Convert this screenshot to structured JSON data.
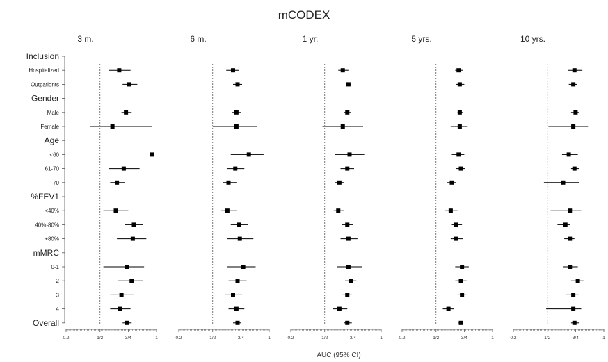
{
  "chart_data": {
    "type": "forest",
    "title": "mCODEX",
    "xlabel": "AUC (95% CI)",
    "xlim": [
      0.2,
      1.0
    ],
    "x_ticks": [
      "0.2",
      "1/2",
      "3/4",
      "1"
    ],
    "reference_line": 0.5,
    "rows": [
      {
        "label": "Inclusion",
        "kind": "group"
      },
      {
        "label": "Hospitalized",
        "kind": "sub"
      },
      {
        "label": "Outpatients",
        "kind": "sub"
      },
      {
        "label": "Gender",
        "kind": "group"
      },
      {
        "label": "Male",
        "kind": "sub"
      },
      {
        "label": "Female",
        "kind": "sub"
      },
      {
        "label": "Age",
        "kind": "group"
      },
      {
        "label": "<60",
        "kind": "sub"
      },
      {
        "label": "61-70",
        "kind": "sub"
      },
      {
        "label": "+70",
        "kind": "sub"
      },
      {
        "label": "%FEV1",
        "kind": "group"
      },
      {
        "label": "<40%",
        "kind": "sub"
      },
      {
        "label": "40%-80%",
        "kind": "sub"
      },
      {
        "label": "+80%",
        "kind": "sub"
      },
      {
        "label": "mMRC",
        "kind": "group"
      },
      {
        "label": "0-1",
        "kind": "sub"
      },
      {
        "label": "2",
        "kind": "sub"
      },
      {
        "label": "3",
        "kind": "sub"
      },
      {
        "label": "4",
        "kind": "sub"
      },
      {
        "label": "Overall",
        "kind": "group"
      }
    ],
    "panels": [
      {
        "name": "3 m.",
        "estimates": [
          {
            "row": 1,
            "est": 0.67,
            "lo": 0.58,
            "hi": 0.77
          },
          {
            "row": 2,
            "est": 0.76,
            "lo": 0.7,
            "hi": 0.83
          },
          {
            "row": 4,
            "est": 0.73,
            "lo": 0.69,
            "hi": 0.78
          },
          {
            "row": 5,
            "est": 0.61,
            "lo": 0.41,
            "hi": 0.96
          },
          {
            "row": 7,
            "est": 0.96,
            "lo": 0.95,
            "hi": 0.97
          },
          {
            "row": 8,
            "est": 0.71,
            "lo": 0.58,
            "hi": 0.85
          },
          {
            "row": 9,
            "est": 0.65,
            "lo": 0.59,
            "hi": 0.72
          },
          {
            "row": 11,
            "est": 0.64,
            "lo": 0.53,
            "hi": 0.75
          },
          {
            "row": 12,
            "est": 0.8,
            "lo": 0.72,
            "hi": 0.88
          },
          {
            "row": 13,
            "est": 0.79,
            "lo": 0.65,
            "hi": 0.91
          },
          {
            "row": 15,
            "est": 0.74,
            "lo": 0.53,
            "hi": 0.89
          },
          {
            "row": 16,
            "est": 0.78,
            "lo": 0.66,
            "hi": 0.88
          },
          {
            "row": 17,
            "est": 0.69,
            "lo": 0.59,
            "hi": 0.8
          },
          {
            "row": 18,
            "est": 0.68,
            "lo": 0.59,
            "hi": 0.77
          },
          {
            "row": 19,
            "est": 0.74,
            "lo": 0.7,
            "hi": 0.78
          }
        ]
      },
      {
        "name": "6 m.",
        "estimates": [
          {
            "row": 1,
            "est": 0.68,
            "lo": 0.62,
            "hi": 0.73
          },
          {
            "row": 2,
            "est": 0.72,
            "lo": 0.68,
            "hi": 0.76
          },
          {
            "row": 4,
            "est": 0.71,
            "lo": 0.67,
            "hi": 0.75
          },
          {
            "row": 5,
            "est": 0.71,
            "lo": 0.5,
            "hi": 0.89
          },
          {
            "row": 7,
            "est": 0.82,
            "lo": 0.66,
            "hi": 0.95
          },
          {
            "row": 8,
            "est": 0.7,
            "lo": 0.63,
            "hi": 0.78
          },
          {
            "row": 9,
            "est": 0.64,
            "lo": 0.59,
            "hi": 0.71
          },
          {
            "row": 11,
            "est": 0.63,
            "lo": 0.57,
            "hi": 0.71
          },
          {
            "row": 12,
            "est": 0.73,
            "lo": 0.66,
            "hi": 0.81
          },
          {
            "row": 13,
            "est": 0.74,
            "lo": 0.63,
            "hi": 0.86
          },
          {
            "row": 15,
            "est": 0.77,
            "lo": 0.63,
            "hi": 0.88
          },
          {
            "row": 16,
            "est": 0.72,
            "lo": 0.64,
            "hi": 0.8
          },
          {
            "row": 17,
            "est": 0.68,
            "lo": 0.61,
            "hi": 0.76
          },
          {
            "row": 18,
            "est": 0.71,
            "lo": 0.64,
            "hi": 0.78
          },
          {
            "row": 19,
            "est": 0.72,
            "lo": 0.68,
            "hi": 0.75
          }
        ]
      },
      {
        "name": "1 yr.",
        "estimates": [
          {
            "row": 1,
            "est": 0.66,
            "lo": 0.62,
            "hi": 0.71
          },
          {
            "row": 2,
            "est": 0.71,
            "lo": 0.69,
            "hi": 0.73
          },
          {
            "row": 4,
            "est": 0.7,
            "lo": 0.67,
            "hi": 0.73
          },
          {
            "row": 5,
            "est": 0.66,
            "lo": 0.48,
            "hi": 0.84
          },
          {
            "row": 7,
            "est": 0.72,
            "lo": 0.59,
            "hi": 0.85
          },
          {
            "row": 8,
            "est": 0.7,
            "lo": 0.64,
            "hi": 0.76
          },
          {
            "row": 9,
            "est": 0.63,
            "lo": 0.59,
            "hi": 0.67
          },
          {
            "row": 11,
            "est": 0.62,
            "lo": 0.58,
            "hi": 0.67
          },
          {
            "row": 12,
            "est": 0.7,
            "lo": 0.65,
            "hi": 0.75
          },
          {
            "row": 13,
            "est": 0.71,
            "lo": 0.64,
            "hi": 0.79
          },
          {
            "row": 15,
            "est": 0.71,
            "lo": 0.61,
            "hi": 0.83
          },
          {
            "row": 16,
            "est": 0.73,
            "lo": 0.68,
            "hi": 0.78
          },
          {
            "row": 17,
            "est": 0.7,
            "lo": 0.65,
            "hi": 0.74
          },
          {
            "row": 18,
            "est": 0.63,
            "lo": 0.57,
            "hi": 0.7
          },
          {
            "row": 19,
            "est": 0.7,
            "lo": 0.67,
            "hi": 0.74
          }
        ]
      },
      {
        "name": "5 yrs.",
        "estimates": [
          {
            "row": 1,
            "est": 0.7,
            "lo": 0.67,
            "hi": 0.74
          },
          {
            "row": 2,
            "est": 0.71,
            "lo": 0.68,
            "hi": 0.75
          },
          {
            "row": 4,
            "est": 0.71,
            "lo": 0.69,
            "hi": 0.74
          },
          {
            "row": 5,
            "est": 0.71,
            "lo": 0.63,
            "hi": 0.78
          },
          {
            "row": 7,
            "est": 0.7,
            "lo": 0.64,
            "hi": 0.75
          },
          {
            "row": 8,
            "est": 0.72,
            "lo": 0.68,
            "hi": 0.76
          },
          {
            "row": 9,
            "est": 0.64,
            "lo": 0.6,
            "hi": 0.68
          },
          {
            "row": 11,
            "est": 0.63,
            "lo": 0.58,
            "hi": 0.69
          },
          {
            "row": 12,
            "est": 0.68,
            "lo": 0.64,
            "hi": 0.73
          },
          {
            "row": 13,
            "est": 0.68,
            "lo": 0.63,
            "hi": 0.74
          },
          {
            "row": 15,
            "est": 0.73,
            "lo": 0.67,
            "hi": 0.79
          },
          {
            "row": 16,
            "est": 0.72,
            "lo": 0.67,
            "hi": 0.77
          },
          {
            "row": 17,
            "est": 0.73,
            "lo": 0.69,
            "hi": 0.77
          },
          {
            "row": 18,
            "est": 0.61,
            "lo": 0.56,
            "hi": 0.66
          },
          {
            "row": 19,
            "est": 0.72,
            "lo": 0.7,
            "hi": 0.74
          }
        ]
      },
      {
        "name": "10 yrs.",
        "estimates": [
          {
            "row": 1,
            "est": 0.74,
            "lo": 0.68,
            "hi": 0.81
          },
          {
            "row": 2,
            "est": 0.73,
            "lo": 0.69,
            "hi": 0.76
          },
          {
            "row": 4,
            "est": 0.75,
            "lo": 0.71,
            "hi": 0.78
          },
          {
            "row": 5,
            "est": 0.73,
            "lo": 0.51,
            "hi": 0.86
          },
          {
            "row": 7,
            "est": 0.69,
            "lo": 0.63,
            "hi": 0.77
          },
          {
            "row": 8,
            "est": 0.74,
            "lo": 0.71,
            "hi": 0.78
          },
          {
            "row": 9,
            "est": 0.64,
            "lo": 0.47,
            "hi": 0.78
          },
          {
            "row": 11,
            "est": 0.7,
            "lo": 0.53,
            "hi": 0.8
          },
          {
            "row": 12,
            "est": 0.66,
            "lo": 0.59,
            "hi": 0.7
          },
          {
            "row": 13,
            "est": 0.7,
            "lo": 0.65,
            "hi": 0.74
          },
          {
            "row": 15,
            "est": 0.7,
            "lo": 0.64,
            "hi": 0.77
          },
          {
            "row": 16,
            "est": 0.77,
            "lo": 0.71,
            "hi": 0.82
          },
          {
            "row": 17,
            "est": 0.73,
            "lo": 0.66,
            "hi": 0.78
          },
          {
            "row": 18,
            "est": 0.73,
            "lo": 0.49,
            "hi": 0.8
          },
          {
            "row": 19,
            "est": 0.74,
            "lo": 0.71,
            "hi": 0.78
          }
        ]
      }
    ],
    "colors": {
      "marker": "#000000",
      "ci": "#000000",
      "reference_line": "#555555",
      "axis": "#555555",
      "text": "#222222"
    }
  }
}
